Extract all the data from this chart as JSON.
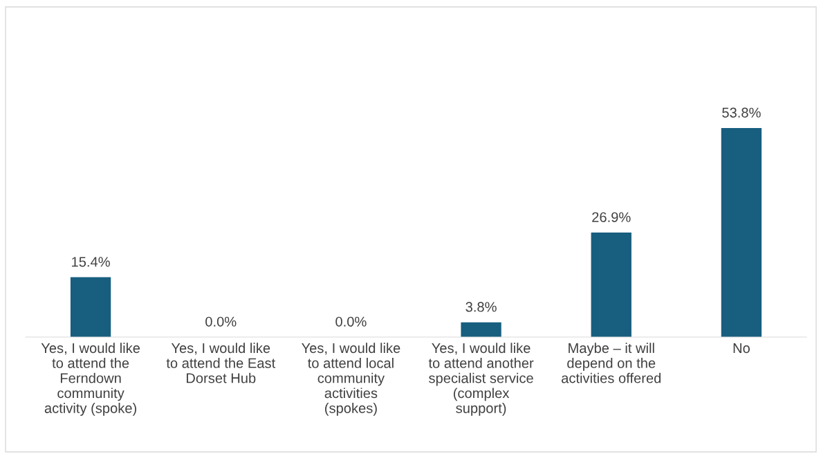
{
  "chart_data": {
    "type": "bar",
    "categories": [
      "Yes, I would like\nto attend the\nFerndown\ncommunity\nactivity (spoke)",
      "Yes, I would like\nto attend the East\nDorset Hub",
      "Yes, I would like\nto attend local\ncommunity\nactivities\n(spokes)",
      "Yes, I would like\nto attend another\nspecialist service\n(complex\nsupport)",
      "Maybe – it will\ndepend on the\nactivities offered",
      "No"
    ],
    "values": [
      15.4,
      0.0,
      0.0,
      3.8,
      26.9,
      53.8
    ],
    "value_labels": [
      "15.4%",
      "0.0%",
      "0.0%",
      "3.8%",
      "26.9%",
      "53.8%"
    ],
    "color": "#175e7f"
  }
}
